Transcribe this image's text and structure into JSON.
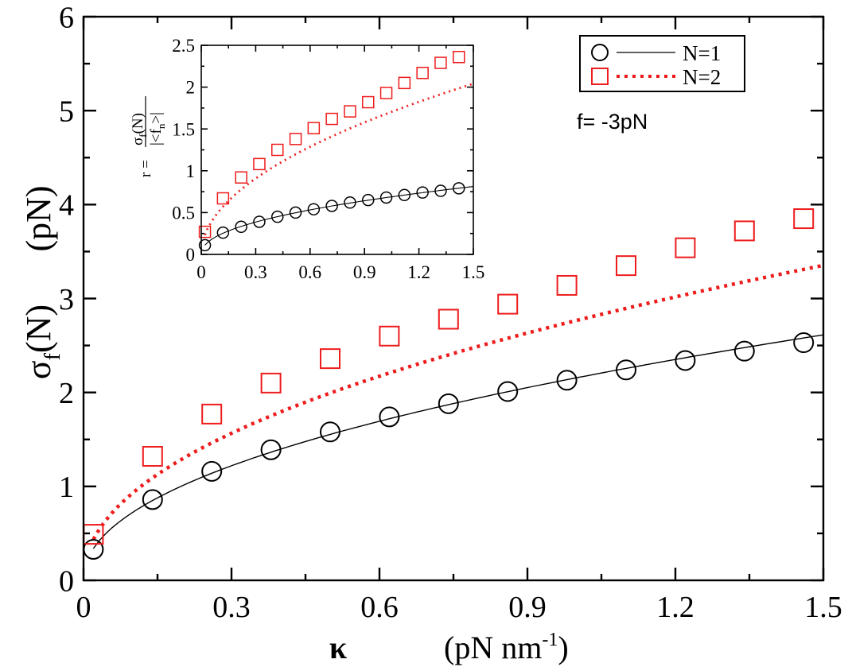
{
  "chart_data": [
    {
      "type": "scatter",
      "xlabel_symbol": "κ",
      "xlabel_unit": "(pN nm",
      "xlabel_unit_exp": "-1",
      "xlabel_unit_close": ")",
      "ylabel_main": "σ",
      "ylabel_sub": "f",
      "ylabel_arg": "(N)",
      "ylabel_unit": "(pN)",
      "xlim": [
        0,
        1.5
      ],
      "ylim": [
        0,
        6
      ],
      "xticks": [
        "0",
        "0.3",
        "0.6",
        "0.9",
        "1.2",
        "1.5"
      ],
      "yticks": [
        "0",
        "1",
        "2",
        "3",
        "4",
        "5",
        "6"
      ],
      "annotation": "f= -3pN",
      "legend": {
        "placement": "top-right",
        "entries": [
          "N=1",
          "N=2"
        ]
      },
      "series": [
        {
          "name": "N=1",
          "marker": "circle",
          "line": "solid",
          "color": "#000000",
          "x": [
            0.02,
            0.14,
            0.26,
            0.38,
            0.5,
            0.62,
            0.74,
            0.86,
            0.98,
            1.1,
            1.22,
            1.34,
            1.46
          ],
          "y": [
            0.33,
            0.86,
            1.16,
            1.39,
            1.58,
            1.74,
            1.88,
            2.01,
            2.13,
            2.24,
            2.34,
            2.44,
            2.53
          ]
        },
        {
          "name": "N=2",
          "marker": "square",
          "line": "dotted",
          "color": "#ee1c1c",
          "x": [
            0.02,
            0.14,
            0.26,
            0.38,
            0.5,
            0.62,
            0.74,
            0.86,
            0.98,
            1.1,
            1.22,
            1.34,
            1.46
          ],
          "y": [
            0.49,
            1.32,
            1.77,
            2.1,
            2.36,
            2.6,
            2.78,
            2.94,
            3.14,
            3.35,
            3.54,
            3.72,
            3.85
          ]
        }
      ]
    },
    {
      "type": "scatter",
      "ylabel_prefix": "r = ",
      "ylabel_num": "σ",
      "ylabel_num_sub": "f",
      "ylabel_num_arg": "(N)",
      "ylabel_den": "|<f",
      "ylabel_den_sub": "n",
      "ylabel_den_close": ">|",
      "xlim": [
        0,
        1.5
      ],
      "ylim": [
        0,
        2.5
      ],
      "xticks": [
        "0",
        "0.3",
        "0.6",
        "0.9",
        "1.2",
        "1.5"
      ],
      "yticks": [
        "0",
        "0.5",
        "1",
        "1.5",
        "2",
        "2.5"
      ],
      "series": [
        {
          "name": "N=1",
          "marker": "circle",
          "line": "solid",
          "color": "#000000",
          "x": [
            0.02,
            0.12,
            0.22,
            0.32,
            0.42,
            0.52,
            0.62,
            0.72,
            0.82,
            0.92,
            1.02,
            1.12,
            1.22,
            1.32,
            1.42
          ],
          "y": [
            0.11,
            0.26,
            0.33,
            0.39,
            0.45,
            0.5,
            0.54,
            0.58,
            0.62,
            0.65,
            0.68,
            0.71,
            0.74,
            0.76,
            0.79
          ]
        },
        {
          "name": "N=2",
          "marker": "square",
          "line": "dotted",
          "color": "#ee1c1c",
          "x": [
            0.02,
            0.12,
            0.22,
            0.32,
            0.42,
            0.52,
            0.62,
            0.72,
            0.82,
            0.92,
            1.02,
            1.12,
            1.22,
            1.32,
            1.42
          ],
          "y": [
            0.27,
            0.67,
            0.92,
            1.08,
            1.25,
            1.38,
            1.51,
            1.62,
            1.71,
            1.82,
            1.93,
            2.05,
            2.17,
            2.29,
            2.36
          ]
        }
      ]
    }
  ]
}
